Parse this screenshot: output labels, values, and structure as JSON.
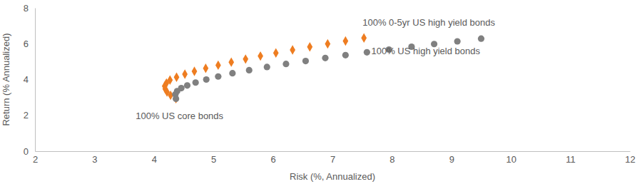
{
  "chart_data": {
    "type": "scatter",
    "x_label": "Risk (%, Annualized)",
    "y_label": "Return (% Annualized)",
    "xlim": [
      2,
      12
    ],
    "xticks": [
      2,
      3,
      4,
      5,
      6,
      7,
      8,
      9,
      10,
      11,
      12
    ],
    "ylim": [
      0,
      8
    ],
    "yticks": [
      0,
      2,
      4,
      6,
      8
    ],
    "grid": false,
    "annotations": [
      "100% 0-5yr US high yield bonds",
      "100% US high yield bonds",
      "100% US core bonds"
    ],
    "series": [
      {
        "color": "#ee7d21",
        "marker": "diamond",
        "x": [
          4.37,
          4.28,
          4.22,
          4.19,
          4.18,
          4.21,
          4.27,
          4.38,
          4.52,
          4.68,
          4.87,
          5.08,
          5.3,
          5.54,
          5.79,
          6.05,
          6.33,
          6.62,
          6.92,
          7.22,
          7.53
        ],
        "values": [
          2.93,
          3.12,
          3.3,
          3.47,
          3.63,
          3.8,
          3.97,
          4.13,
          4.3,
          4.46,
          4.63,
          4.8,
          4.97,
          5.14,
          5.31,
          5.48,
          5.65,
          5.82,
          5.99,
          6.15,
          6.32
        ]
      },
      {
        "color": "#808080",
        "marker": "circle",
        "x": [
          4.37,
          4.36,
          4.39,
          4.46,
          4.56,
          4.7,
          4.88,
          5.08,
          5.32,
          5.6,
          5.9,
          6.22,
          6.55,
          6.88,
          7.22,
          7.58,
          7.95,
          8.33,
          8.71,
          9.1,
          9.5
        ],
        "values": [
          2.93,
          3.17,
          3.35,
          3.52,
          3.67,
          3.83,
          4.0,
          4.17,
          4.35,
          4.52,
          4.7,
          4.87,
          5.03,
          5.2,
          5.36,
          5.52,
          5.67,
          5.83,
          5.98,
          6.13,
          6.28
        ]
      }
    ]
  }
}
